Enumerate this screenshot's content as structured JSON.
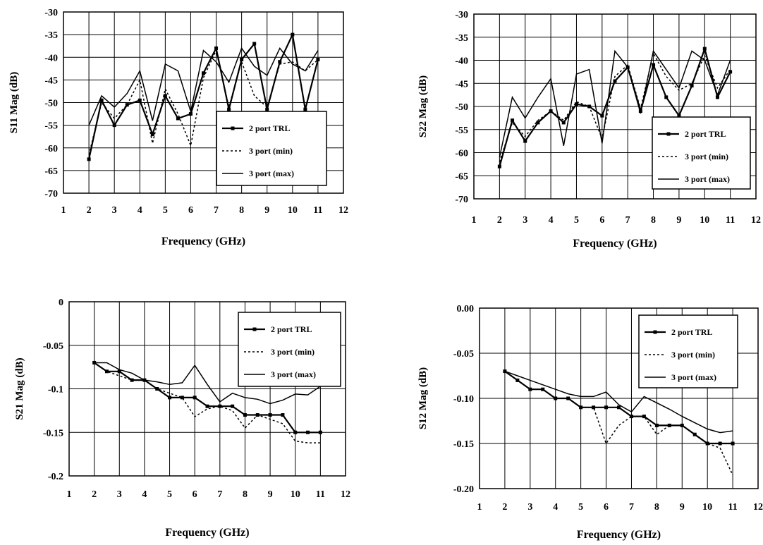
{
  "chart_data": [
    {
      "id": "s11",
      "type": "line",
      "xlabel": "Frequency (GHz)",
      "ylabel": "S11 Mag (dB)",
      "xlim": [
        1,
        12
      ],
      "ylim": [
        -70,
        -30
      ],
      "xticks": [
        "1",
        "2",
        "3",
        "4",
        "5",
        "6",
        "7",
        "8",
        "9",
        "10",
        "11",
        "12"
      ],
      "yticks": [
        "-30",
        "-35",
        "-40",
        "-45",
        "-50",
        "-55",
        "-60",
        "-65",
        "-70"
      ],
      "grid": true,
      "legend_position": "bottom-right",
      "x": [
        2,
        2.5,
        3,
        3.5,
        4,
        4.5,
        5,
        5.5,
        6,
        6.5,
        7,
        7.5,
        8,
        8.5,
        9,
        9.5,
        10,
        10.5,
        11
      ],
      "series": [
        {
          "name": "2 port TRL",
          "style": "markers",
          "values": [
            -62.5,
            -49.5,
            -55,
            -50.5,
            -49.5,
            -57,
            -48.5,
            -53.5,
            -52.5,
            -43.5,
            -38,
            -51.5,
            -40.5,
            -37,
            -51.5,
            -41,
            -35,
            -51.5,
            -40.5
          ]
        },
        {
          "name": "3 port (min)",
          "style": "dashed",
          "values": [
            -61.5,
            -50,
            -53.5,
            -50.5,
            -45,
            -59,
            -47,
            -52.5,
            -59.5,
            -44.5,
            -38.5,
            -51,
            -41,
            -48.5,
            -51,
            -41.5,
            -41,
            -43,
            -40.5
          ]
        },
        {
          "name": "3 port (max)",
          "style": "solid",
          "values": [
            -55,
            -48.5,
            -51,
            -48,
            -43,
            -54,
            -41.5,
            -43,
            -52,
            -38.5,
            -41,
            -45.5,
            -38,
            -42,
            -44,
            -38,
            -41.5,
            -43,
            -38.5
          ]
        }
      ]
    },
    {
      "id": "s22",
      "type": "line",
      "xlabel": "Frequency (GHz)",
      "ylabel": "S22 Mag (dB)",
      "xlim": [
        1,
        12
      ],
      "ylim": [
        -70,
        -30
      ],
      "xticks": [
        "1",
        "2",
        "3",
        "4",
        "5",
        "6",
        "7",
        "8",
        "9",
        "10",
        "11",
        "12"
      ],
      "yticks": [
        "-30",
        "-35",
        "-40",
        "-45",
        "-50",
        "-55",
        "-60",
        "-65",
        "-70"
      ],
      "grid": true,
      "legend_position": "bottom-right",
      "x": [
        2,
        2.5,
        3,
        3.5,
        4,
        4.5,
        5,
        5.5,
        6,
        6.5,
        7,
        7.5,
        8,
        8.5,
        9,
        9.5,
        10,
        10.5,
        11
      ],
      "series": [
        {
          "name": "2 port TRL",
          "style": "markers",
          "values": [
            -63,
            -53,
            -57.5,
            -53.5,
            -51,
            -53.5,
            -49.5,
            -50,
            -52,
            -44.5,
            -41.5,
            -51,
            -41,
            -48,
            -52,
            -45.5,
            -37.5,
            -48,
            -42.5
          ]
        },
        {
          "name": "3 port (min)",
          "style": "dashed",
          "values": [
            -62,
            -53.5,
            -56.5,
            -53,
            -51,
            -53,
            -49,
            -50,
            -57,
            -43.5,
            -41,
            -50.5,
            -38.5,
            -43.5,
            -46.5,
            -45,
            -39,
            -46,
            -42
          ]
        },
        {
          "name": "3 port (max)",
          "style": "solid",
          "values": [
            -61,
            -48,
            -52.5,
            -48,
            -44,
            -58.5,
            -43,
            -42,
            -58,
            -38,
            -41.5,
            -51.5,
            -38,
            -42,
            -46,
            -38,
            -40,
            -47.5,
            -40
          ]
        }
      ]
    },
    {
      "id": "s21",
      "type": "line",
      "xlabel": "Frequency (GHz)",
      "ylabel": "S21 Mag (dB)",
      "xlim": [
        1,
        12
      ],
      "ylim": [
        -0.2,
        0
      ],
      "xticks": [
        "1",
        "2",
        "3",
        "4",
        "5",
        "6",
        "7",
        "8",
        "9",
        "10",
        "11",
        "12"
      ],
      "yticks": [
        "0",
        "-0.05",
        "-0.1",
        "-0.15",
        "-0.2"
      ],
      "grid": true,
      "legend_position": "top-right",
      "x": [
        2,
        2.5,
        3,
        3.5,
        4,
        4.5,
        5,
        5.5,
        6,
        6.5,
        7,
        7.5,
        8,
        8.5,
        9,
        9.5,
        10,
        10.5,
        11
      ],
      "series": [
        {
          "name": "2 port TRL",
          "style": "markers",
          "values": [
            -0.07,
            -0.08,
            -0.08,
            -0.09,
            -0.09,
            -0.1,
            -0.11,
            -0.11,
            -0.11,
            -0.12,
            -0.12,
            -0.12,
            -0.13,
            -0.13,
            -0.13,
            -0.13,
            -0.15,
            -0.15,
            -0.15
          ]
        },
        {
          "name": "3 port (min)",
          "style": "dashed",
          "values": [
            -0.07,
            -0.08,
            -0.085,
            -0.09,
            -0.09,
            -0.1,
            -0.105,
            -0.11,
            -0.132,
            -0.123,
            -0.12,
            -0.125,
            -0.145,
            -0.13,
            -0.135,
            -0.14,
            -0.16,
            -0.162,
            -0.162
          ]
        },
        {
          "name": "3 port (max)",
          "style": "solid",
          "values": [
            -0.07,
            -0.07,
            -0.078,
            -0.082,
            -0.09,
            -0.092,
            -0.095,
            -0.093,
            -0.073,
            -0.095,
            -0.115,
            -0.105,
            -0.11,
            -0.112,
            -0.117,
            -0.113,
            -0.106,
            -0.107,
            -0.097
          ]
        }
      ]
    },
    {
      "id": "s12",
      "type": "line",
      "xlabel": "Frequency (GHz)",
      "ylabel": "S12 Mag (dB)",
      "xlim": [
        1,
        12
      ],
      "ylim": [
        -0.2,
        0
      ],
      "xticks": [
        "1",
        "2",
        "3",
        "4",
        "5",
        "6",
        "7",
        "8",
        "9",
        "10",
        "11",
        "12"
      ],
      "yticks": [
        "0.00",
        "-0.05",
        "-0.10",
        "-0.15",
        "-0.20"
      ],
      "grid": true,
      "legend_position": "top-right",
      "x": [
        2,
        2.5,
        3,
        3.5,
        4,
        4.5,
        5,
        5.5,
        6,
        6.5,
        7,
        7.5,
        8,
        8.5,
        9,
        9.5,
        10,
        10.5,
        11
      ],
      "series": [
        {
          "name": "2 port TRL",
          "style": "markers",
          "values": [
            -0.07,
            -0.08,
            -0.09,
            -0.09,
            -0.1,
            -0.1,
            -0.11,
            -0.11,
            -0.11,
            -0.11,
            -0.12,
            -0.12,
            -0.13,
            -0.13,
            -0.13,
            -0.14,
            -0.15,
            -0.15,
            -0.15
          ]
        },
        {
          "name": "3 port (min)",
          "style": "dashed",
          "values": [
            -0.07,
            -0.08,
            -0.09,
            -0.09,
            -0.1,
            -0.1,
            -0.11,
            -0.11,
            -0.15,
            -0.13,
            -0.12,
            -0.12,
            -0.14,
            -0.13,
            -0.13,
            -0.14,
            -0.15,
            -0.155,
            -0.185
          ]
        },
        {
          "name": "3 port (max)",
          "style": "solid",
          "values": [
            -0.07,
            -0.075,
            -0.08,
            -0.085,
            -0.09,
            -0.095,
            -0.098,
            -0.098,
            -0.093,
            -0.107,
            -0.115,
            -0.098,
            -0.105,
            -0.112,
            -0.12,
            -0.127,
            -0.134,
            -0.138,
            -0.136
          ]
        }
      ]
    }
  ]
}
